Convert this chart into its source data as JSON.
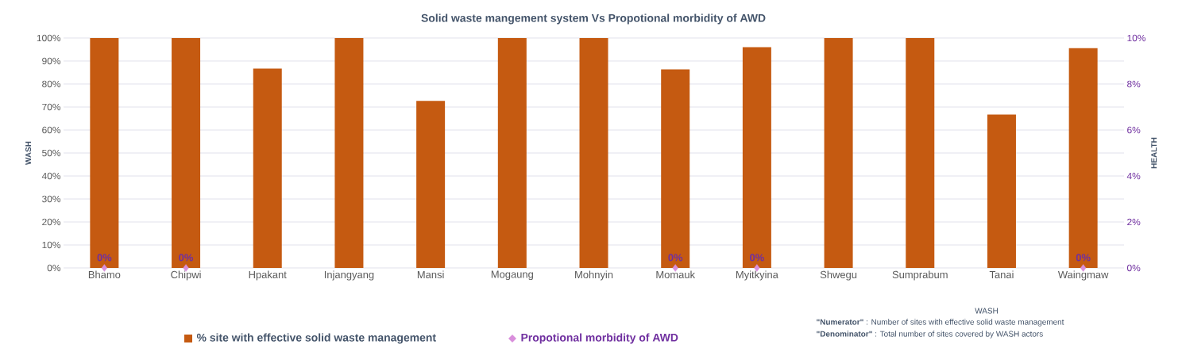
{
  "chart_data": {
    "type": "bar",
    "title": "Solid waste mangement system Vs Propotional morbidity of AWD",
    "categories": [
      "Bhamo",
      "Chipwi",
      "Hpakant",
      "Injangyang",
      "Mansi",
      "Mogaung",
      "Mohnyin",
      "Momauk",
      "Myitkyina",
      "Shwegu",
      "Sumprabum",
      "Tanai",
      "Waingmaw"
    ],
    "series": [
      {
        "name": "% site with effective solid waste management",
        "color": "#c55a11",
        "values": [
          100,
          100,
          86.7,
          100,
          72.7,
          100,
          100,
          86.4,
          96,
          100,
          100,
          66.7,
          95.6
        ]
      },
      {
        "name": "Propotional morbidity of AWD",
        "type": "scatter",
        "axis": "y2",
        "color": "#d98fdc",
        "values": [
          0,
          0,
          null,
          null,
          null,
          null,
          null,
          0,
          0,
          null,
          null,
          null,
          0
        ],
        "value_labels": [
          "0%",
          "0%",
          null,
          null,
          null,
          null,
          null,
          "0%",
          "0%",
          null,
          null,
          null,
          "0%"
        ]
      }
    ],
    "ylabel": "WASH",
    "y2label": "HEALTH",
    "ylim": [
      0,
      100
    ],
    "yticks": [
      {
        "value": 0,
        "label": "0%"
      },
      {
        "value": 10,
        "label": "10%"
      },
      {
        "value": 20,
        "label": "20%"
      },
      {
        "value": 30,
        "label": "30%"
      },
      {
        "value": 40,
        "label": "40%"
      },
      {
        "value": 50,
        "label": "50%"
      },
      {
        "value": 60,
        "label": "60%"
      },
      {
        "value": 70,
        "label": "70%"
      },
      {
        "value": 80,
        "label": "80%"
      },
      {
        "value": 90,
        "label": "90%"
      },
      {
        "value": 100,
        "label": "100%"
      }
    ],
    "y2lim": [
      0,
      10
    ],
    "y2ticks": [
      {
        "value": 0,
        "label": "0%"
      },
      {
        "value": 2,
        "label": "2%"
      },
      {
        "value": 4,
        "label": "4%"
      },
      {
        "value": 6,
        "label": "6%"
      },
      {
        "value": 8,
        "label": "8%"
      },
      {
        "value": 10,
        "label": "10%"
      }
    ],
    "grid": "y",
    "legend": "bottom",
    "marker": "diamond",
    "annotations": [
      "WASH",
      "**\"Numerator\"** : Number of sites with effective solid waste management",
      "**\"Denominator\"** : Total number of sites covered by WASH actors"
    ]
  }
}
